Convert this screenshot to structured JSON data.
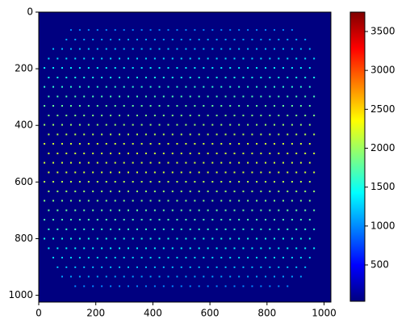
{
  "chart_data": {
    "type": "image",
    "colormap": "jet",
    "xlim": [
      0,
      1024
    ],
    "ylim": [
      1024,
      0
    ],
    "xticks": [
      0,
      200,
      400,
      600,
      800,
      1000
    ],
    "yticks": [
      0,
      200,
      400,
      600,
      800,
      1000
    ],
    "background_value": 33,
    "spots": {
      "row_y": [
        63,
        97,
        130,
        164,
        197,
        231,
        264,
        298,
        331,
        365,
        398,
        432,
        465,
        499,
        532,
        566,
        599,
        633,
        666,
        700,
        733,
        767,
        800,
        834,
        867,
        901,
        934,
        968
      ],
      "even_x": [
        20,
        51,
        82,
        113,
        144,
        175,
        206,
        237,
        268,
        299,
        330,
        361,
        392,
        423,
        454,
        485,
        516,
        547,
        578,
        609,
        640,
        671,
        702,
        733,
        764,
        795,
        826,
        857,
        888,
        919,
        950,
        981,
        1012
      ],
      "odd_x": [
        35,
        66,
        97,
        128,
        159,
        190,
        221,
        252,
        283,
        314,
        345,
        376,
        407,
        438,
        469,
        500,
        531,
        562,
        593,
        624,
        655,
        686,
        717,
        748,
        779,
        810,
        841,
        872,
        903,
        934,
        965,
        996
      ],
      "row_xmin": [
        107,
        72,
        42,
        16,
        0,
        0,
        0,
        0,
        0,
        0,
        0,
        0,
        0,
        0,
        0,
        0,
        0,
        0,
        0,
        0,
        0,
        0,
        0,
        0,
        21,
        48,
        78,
        115
      ],
      "row_xmax": [
        903,
        938,
        965,
        965,
        965,
        965,
        965,
        965,
        965,
        965,
        965,
        965,
        965,
        965,
        965,
        965,
        965,
        965,
        965,
        965,
        965,
        965,
        965,
        965,
        965,
        962,
        932,
        895
      ],
      "row_values": [
        1000,
        1100,
        1200,
        1300,
        1400,
        1500,
        1600,
        1700,
        1800,
        1900,
        2000,
        2100,
        2200,
        2200,
        2200,
        2200,
        2100,
        2000,
        1900,
        1800,
        1700,
        1600,
        1500,
        1400,
        1300,
        1200,
        1100,
        1000
      ]
    },
    "colorbar": {
      "lim": [
        33,
        3749
      ],
      "ticks": [
        500,
        1000,
        1500,
        2000,
        2500,
        3000,
        3500
      ]
    }
  }
}
